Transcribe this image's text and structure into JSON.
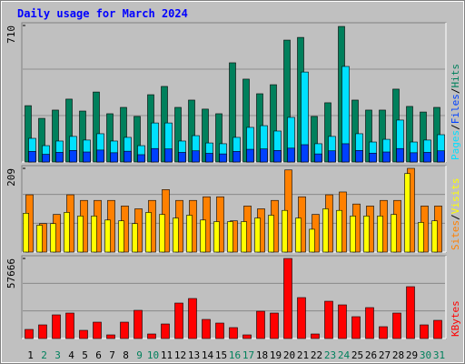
{
  "title": "Daily usage for March 2024",
  "chart_data": [
    {
      "type": "bar",
      "ylim": [
        0,
        710
      ],
      "yticks": [
        710
      ],
      "separator": "/",
      "series": [
        {
          "name": "Pages",
          "color": "#00e0ff",
          "values": [
            123,
            85,
            109,
            133,
            114,
            147,
            109,
            128,
            85,
            203,
            203,
            109,
            137,
            99,
            95,
            128,
            180,
            189,
            161,
            232,
            468,
            95,
            133,
            497,
            147,
            104,
            118,
            218,
            104,
            114,
            142
          ]
        },
        {
          "name": "Files",
          "color": "#0040ff",
          "values": [
            55,
            40,
            50,
            60,
            52,
            62,
            48,
            56,
            38,
            70,
            68,
            50,
            58,
            45,
            42,
            55,
            66,
            68,
            60,
            72,
            90,
            42,
            58,
            95,
            60,
            46,
            52,
            70,
            48,
            50,
            58
          ]
        },
        {
          "name": "Hits",
          "color": "#00805c",
          "values": [
            293,
            227,
            270,
            327,
            265,
            364,
            251,
            284,
            237,
            350,
            393,
            284,
            322,
            275,
            251,
            516,
            431,
            355,
            402,
            634,
            648,
            237,
            308,
            705,
            322,
            270,
            270,
            379,
            289,
            260,
            284
          ]
        }
      ]
    },
    {
      "type": "bar",
      "ylim": [
        0,
        209
      ],
      "yticks": [
        209
      ],
      "separator": "/",
      "series": [
        {
          "name": "Sites",
          "color": "#ff8000",
          "values": [
            143,
            71,
            94,
            143,
            129,
            129,
            129,
            115,
            108,
            129,
            156,
            129,
            129,
            138,
            138,
            78,
            115,
            108,
            129,
            205,
            138,
            94,
            143,
            150,
            120,
            115,
            129,
            129,
            209,
            115,
            115
          ]
        },
        {
          "name": "Visits",
          "color": "#ffff00",
          "values": [
            97,
            67,
            71,
            99,
            90,
            90,
            80,
            78,
            71,
            99,
            94,
            85,
            92,
            80,
            76,
            76,
            76,
            85,
            92,
            104,
            85,
            57,
            108,
            104,
            90,
            90,
            90,
            94,
            196,
            74,
            78
          ]
        }
      ]
    },
    {
      "type": "bar",
      "ylim": [
        0,
        57666
      ],
      "yticks": [
        57666
      ],
      "categories": [
        "1",
        "2",
        "3",
        "4",
        "5",
        "6",
        "7",
        "8",
        "9",
        "10",
        "11",
        "12",
        "13",
        "14",
        "15",
        "16",
        "17",
        "18",
        "19",
        "20",
        "21",
        "22",
        "23",
        "24",
        "25",
        "26",
        "27",
        "28",
        "29",
        "30",
        "31"
      ],
      "category_colors": [
        "#000000",
        "#00805c",
        "#00805c",
        "#000000",
        "#000000",
        "#000000",
        "#000000",
        "#000000",
        "#00805c",
        "#00805c",
        "#000000",
        "#000000",
        "#000000",
        "#000000",
        "#000000",
        "#00805c",
        "#00805c",
        "#000000",
        "#000000",
        "#000000",
        "#000000",
        "#000000",
        "#00805c",
        "#00805c",
        "#000000",
        "#000000",
        "#000000",
        "#000000",
        "#000000",
        "#00805c",
        "#00805c"
      ],
      "series": [
        {
          "name": "KBytes",
          "color": "#ff0000",
          "values": [
            6550,
            9825,
            17030,
            18340,
            5895,
            11790,
            2620,
            11790,
            20305,
            3275,
            10480,
            25545,
            28820,
            13755,
            11135,
            7860,
            2620,
            19650,
            18340,
            57640,
            29475,
            3275,
            26855,
            24235,
            15720,
            22270,
            8515,
            18340,
            37335,
            9825,
            13100
          ]
        }
      ]
    }
  ]
}
